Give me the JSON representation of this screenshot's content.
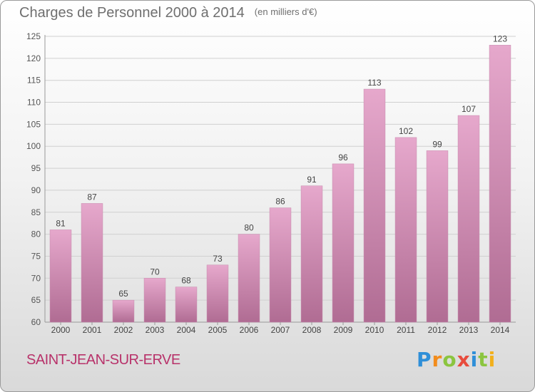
{
  "header": {
    "title": "Charges de Personnel 2000 à 2014",
    "unit": "(en milliers d'€)"
  },
  "footer": {
    "commune": "SAINT-JEAN-SUR-ERVE",
    "logo_letters": [
      "P",
      "r",
      "o",
      "x",
      "i",
      "t",
      "i"
    ]
  },
  "colors": {
    "bar_top": "#e6a8cc",
    "bar_bottom": "#b06c93",
    "commune_text": "#b8326a"
  },
  "chart_data": {
    "type": "bar",
    "title": "Charges de Personnel 2000 à 2014",
    "subtitle": "(en milliers d'€)",
    "categories": [
      "2000",
      "2001",
      "2002",
      "2003",
      "2004",
      "2005",
      "2006",
      "2007",
      "2008",
      "2009",
      "2010",
      "2011",
      "2012",
      "2013",
      "2014"
    ],
    "values": [
      81,
      87,
      65,
      70,
      68,
      73,
      80,
      86,
      91,
      96,
      113,
      102,
      99,
      107,
      123
    ],
    "ylim": [
      60,
      125
    ],
    "yticks": [
      60,
      65,
      70,
      75,
      80,
      85,
      90,
      95,
      100,
      105,
      110,
      115,
      120,
      125
    ],
    "grid": true,
    "data_labels": true
  }
}
